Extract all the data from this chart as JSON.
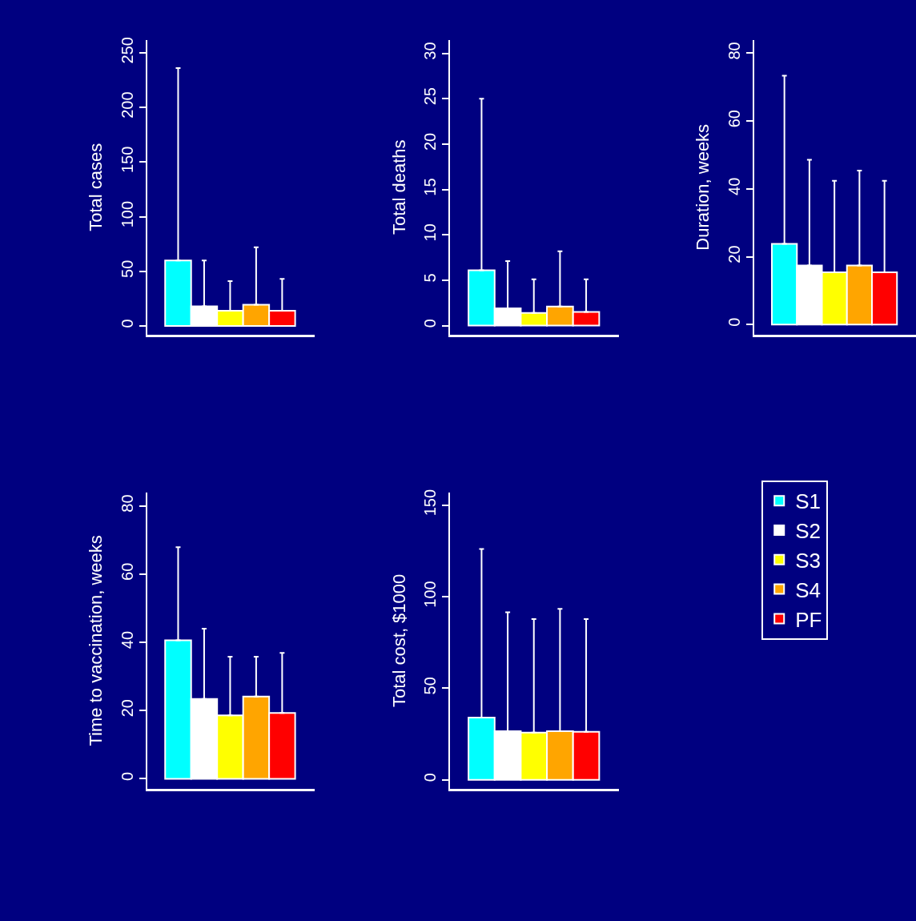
{
  "chart_data": [
    {
      "type": "bar",
      "ylabel": "Total cases",
      "categories": [
        null,
        null,
        null,
        null,
        null
      ],
      "values": [
        60,
        18,
        14,
        19.5,
        14
      ],
      "colors": [
        "#00ffff",
        "#ffffff",
        "#ffff00",
        "#ffa500",
        "#ff0000"
      ],
      "errors": [
        [
          60,
          236
        ],
        [
          18,
          60
        ],
        [
          14,
          41
        ],
        [
          19.5,
          72
        ],
        [
          14,
          43
        ]
      ],
      "ylim": [
        -8,
        262
      ],
      "yticks": [
        0,
        50,
        100,
        150,
        200,
        250
      ],
      "tick_labels": "y"
    },
    {
      "type": "bar",
      "ylabel": "Total deaths",
      "categories": [
        null,
        null,
        null,
        null,
        null
      ],
      "values": [
        6.1,
        1.9,
        1.4,
        2.1,
        1.5
      ],
      "colors": [
        "#00ffff",
        "#ffffff",
        "#ffff00",
        "#ffa500",
        "#ff0000"
      ],
      "errors": [
        [
          6.1,
          25
        ],
        [
          1.9,
          7.1
        ],
        [
          1.4,
          5.1
        ],
        [
          2.1,
          8.2
        ],
        [
          1.5,
          5.1
        ]
      ],
      "ylim": [
        -1,
        31.5
      ],
      "yticks": [
        0,
        5,
        10,
        15,
        20,
        25,
        30
      ],
      "tick_labels": "y"
    },
    {
      "type": "bar",
      "ylabel": "Duration, weeks",
      "categories": [
        null,
        null,
        null,
        null,
        null
      ],
      "values": [
        23.8,
        17.4,
        15.4,
        17.4,
        15.4
      ],
      "colors": [
        "#00ffff",
        "#ffffff",
        "#ffff00",
        "#ffa500",
        "#ff0000"
      ],
      "errors": [
        [
          23.8,
          73.4
        ],
        [
          17.4,
          48.6
        ],
        [
          15.4,
          42.4
        ],
        [
          17.4,
          45.4
        ],
        [
          15.4,
          42.4
        ]
      ],
      "ylim": [
        -3,
        84
      ],
      "yticks": [
        0,
        20,
        40,
        60,
        80
      ],
      "tick_labels": "y"
    },
    {
      "type": "bar",
      "ylabel": "Time to vaccination, weeks",
      "categories": [
        null,
        null,
        null,
        null,
        null
      ],
      "values": [
        40.6,
        23.4,
        18.6,
        24.1,
        19.3
      ],
      "colors": [
        "#00ffff",
        "#ffffff",
        "#ffff00",
        "#ffa500",
        "#ff0000"
      ],
      "errors": [
        [
          40.6,
          67.9
        ],
        [
          23.4,
          44
        ],
        [
          18.6,
          35.8
        ],
        [
          24.1,
          35.8
        ],
        [
          19.3,
          36.9
        ]
      ],
      "ylim": [
        -3,
        84
      ],
      "yticks": [
        0,
        20,
        40,
        60,
        80
      ],
      "tick_labels": "y"
    },
    {
      "type": "bar",
      "ylabel": "Total cost, $1000",
      "categories": [
        null
      ],
      "legend": "right",
      "tick_labels": "y",
      "ylim": [
        -5,
        157
      ],
      "yticks": [
        0,
        50,
        100,
        150
      ],
      "series": [
        {
          "name": "S1",
          "color": "#00ffff",
          "values": [
            34
          ],
          "errors": [
            [
              34,
              126
            ]
          ]
        },
        {
          "name": "S2",
          "color": "#ffffff",
          "values": [
            26.6
          ],
          "errors": [
            [
              26.6,
              91.5
            ]
          ]
        },
        {
          "name": "S3",
          "color": "#ffff00",
          "values": [
            25.8
          ],
          "errors": [
            [
              25.8,
              87.7
            ]
          ]
        },
        {
          "name": "S4",
          "color": "#ffa500",
          "values": [
            26.6
          ],
          "errors": [
            [
              26.6,
              93.3
            ]
          ]
        },
        {
          "name": "PF",
          "color": "#ff0000",
          "values": [
            26.2
          ],
          "errors": [
            [
              26.2,
              87.7
            ]
          ]
        }
      ]
    }
  ]
}
